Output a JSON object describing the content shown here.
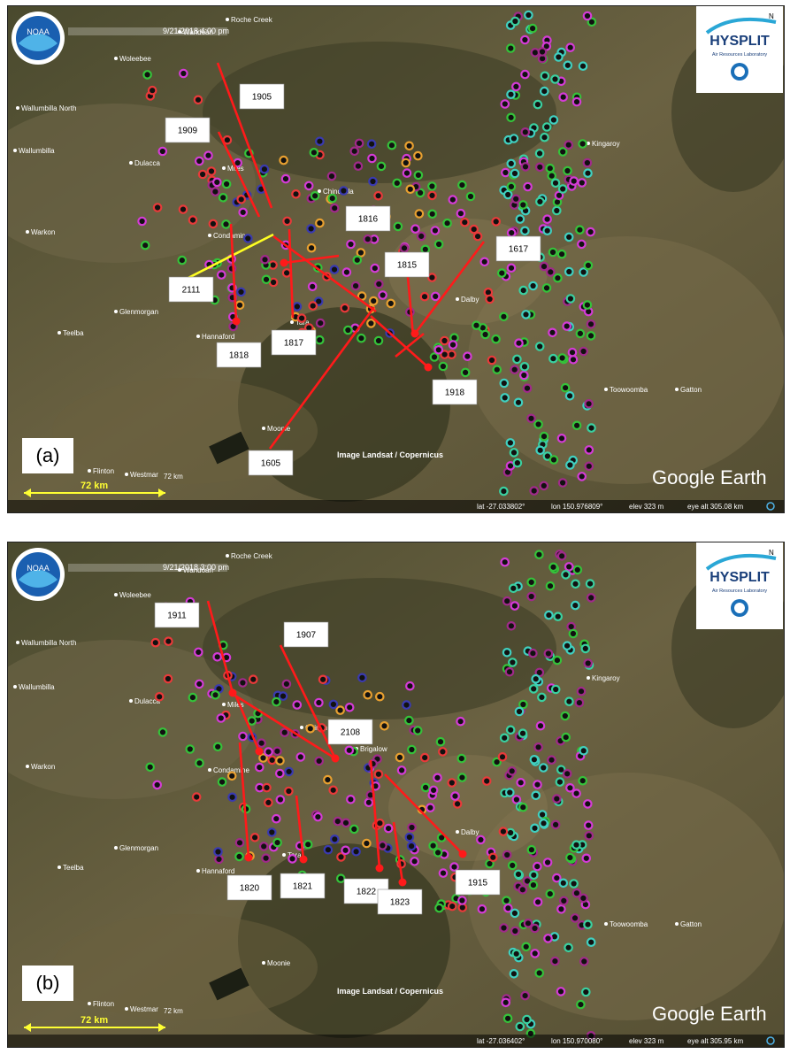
{
  "colors": {
    "trajectory": "#ff1a1a",
    "special_trajectory": "#ffff22",
    "scale": "#ffff33",
    "markers": [
      "#35c23a",
      "#d43bd6",
      "#3a3ab0",
      "#e83a3a",
      "#40d0c0",
      "#e8a030",
      "#3ad0a0",
      "#a02a8a"
    ]
  },
  "panels": [
    {
      "id": "a",
      "panel_label": "(a)",
      "datetime": "9/21/2018   4:00 pm",
      "status": {
        "lat": "lat  -27.033802°",
        "lon": "lon  150.976809°",
        "elev": "elev   323 m",
        "eye": "eye alt 305.08 km"
      },
      "scale_label": "72 km",
      "scale_label2": "72 km",
      "trajectory_labels": [
        "1905",
        "1909",
        "1816",
        "1617",
        "1815",
        "2111",
        "1817",
        "1818",
        "1918",
        "1605"
      ]
    },
    {
      "id": "b",
      "panel_label": "(b)",
      "datetime": "9/21/2018   3:00 pm",
      "status": {
        "lat": "lat  -27.036402°",
        "lon": "lon  150.970080°",
        "elev": "elev   323 m",
        "eye": "eye alt 305.95 km"
      },
      "scale_label": "72 km",
      "scale_label2": "72 km",
      "trajectory_labels": [
        "1911",
        "1907",
        "2108",
        "1820",
        "1821",
        "1822",
        "1823",
        "1915"
      ]
    }
  ],
  "places_a": [
    "Roche Creek",
    "Wandoan",
    "Woleebee",
    "Wallumbilla North",
    "Wallumbilla",
    "Dulacca",
    "Miles",
    "Chinchilla",
    "Warkon",
    "Condamine",
    "Glenmorgan",
    "Teelba",
    "Hannaford",
    "Tara",
    "Dalby",
    "Kingaroy",
    "Toowoomba",
    "Gatton",
    "Moonie",
    "Flinton",
    "Westmar"
  ],
  "places_b": [
    "Roche Creek",
    "Wandoan",
    "Woleebee",
    "Wallumbilla North",
    "Wallumbilla",
    "Dulacca",
    "Miles",
    "Chinch",
    "Brigalow",
    "Warkon",
    "Condamine",
    "Glenmorgan",
    "Teelba",
    "Hannaford",
    "Tara",
    "Dalby",
    "Kingaroy",
    "Toowoomba",
    "Gatton",
    "Moonie",
    "Flinton",
    "Westmar"
  ],
  "credit": "Image Landsat / Copernicus",
  "google_earth": "Google Earth",
  "hysplit": {
    "brand": "HYSPLIT",
    "sub": "Air Resources Laboratory",
    "north": "N"
  },
  "noaa": "NOAA"
}
